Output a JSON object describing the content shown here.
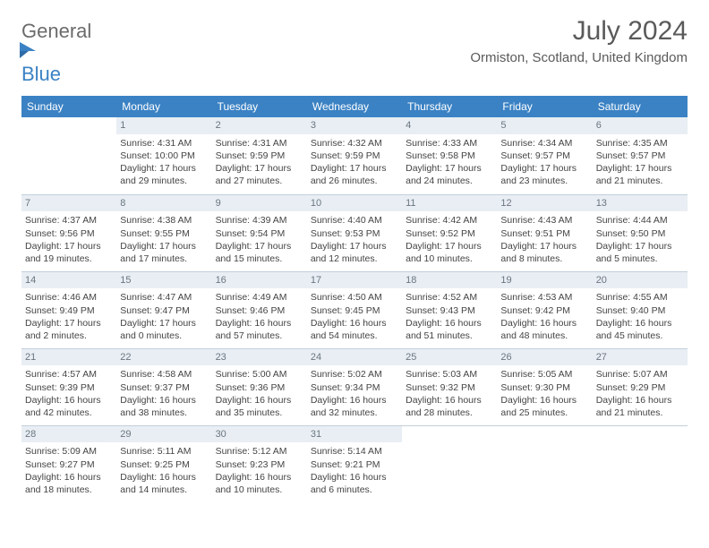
{
  "logo": {
    "line1": "General",
    "line2": "Blue"
  },
  "title": "July 2024",
  "subtitle": "Ormiston, Scotland, United Kingdom",
  "colors": {
    "header_bg": "#3b82c4",
    "daynum_bg": "#e8eef3",
    "text": "#444444",
    "title_color": "#5a5a5a",
    "row_border": "#c3cfda"
  },
  "day_labels": [
    "Sunday",
    "Monday",
    "Tuesday",
    "Wednesday",
    "Thursday",
    "Friday",
    "Saturday"
  ],
  "weeks": [
    [
      null,
      {
        "n": "1",
        "sr": "4:31 AM",
        "ss": "10:00 PM",
        "dl": "17 hours and 29 minutes."
      },
      {
        "n": "2",
        "sr": "4:31 AM",
        "ss": "9:59 PM",
        "dl": "17 hours and 27 minutes."
      },
      {
        "n": "3",
        "sr": "4:32 AM",
        "ss": "9:59 PM",
        "dl": "17 hours and 26 minutes."
      },
      {
        "n": "4",
        "sr": "4:33 AM",
        "ss": "9:58 PM",
        "dl": "17 hours and 24 minutes."
      },
      {
        "n": "5",
        "sr": "4:34 AM",
        "ss": "9:57 PM",
        "dl": "17 hours and 23 minutes."
      },
      {
        "n": "6",
        "sr": "4:35 AM",
        "ss": "9:57 PM",
        "dl": "17 hours and 21 minutes."
      }
    ],
    [
      {
        "n": "7",
        "sr": "4:37 AM",
        "ss": "9:56 PM",
        "dl": "17 hours and 19 minutes."
      },
      {
        "n": "8",
        "sr": "4:38 AM",
        "ss": "9:55 PM",
        "dl": "17 hours and 17 minutes."
      },
      {
        "n": "9",
        "sr": "4:39 AM",
        "ss": "9:54 PM",
        "dl": "17 hours and 15 minutes."
      },
      {
        "n": "10",
        "sr": "4:40 AM",
        "ss": "9:53 PM",
        "dl": "17 hours and 12 minutes."
      },
      {
        "n": "11",
        "sr": "4:42 AM",
        "ss": "9:52 PM",
        "dl": "17 hours and 10 minutes."
      },
      {
        "n": "12",
        "sr": "4:43 AM",
        "ss": "9:51 PM",
        "dl": "17 hours and 8 minutes."
      },
      {
        "n": "13",
        "sr": "4:44 AM",
        "ss": "9:50 PM",
        "dl": "17 hours and 5 minutes."
      }
    ],
    [
      {
        "n": "14",
        "sr": "4:46 AM",
        "ss": "9:49 PM",
        "dl": "17 hours and 2 minutes."
      },
      {
        "n": "15",
        "sr": "4:47 AM",
        "ss": "9:47 PM",
        "dl": "17 hours and 0 minutes."
      },
      {
        "n": "16",
        "sr": "4:49 AM",
        "ss": "9:46 PM",
        "dl": "16 hours and 57 minutes."
      },
      {
        "n": "17",
        "sr": "4:50 AM",
        "ss": "9:45 PM",
        "dl": "16 hours and 54 minutes."
      },
      {
        "n": "18",
        "sr": "4:52 AM",
        "ss": "9:43 PM",
        "dl": "16 hours and 51 minutes."
      },
      {
        "n": "19",
        "sr": "4:53 AM",
        "ss": "9:42 PM",
        "dl": "16 hours and 48 minutes."
      },
      {
        "n": "20",
        "sr": "4:55 AM",
        "ss": "9:40 PM",
        "dl": "16 hours and 45 minutes."
      }
    ],
    [
      {
        "n": "21",
        "sr": "4:57 AM",
        "ss": "9:39 PM",
        "dl": "16 hours and 42 minutes."
      },
      {
        "n": "22",
        "sr": "4:58 AM",
        "ss": "9:37 PM",
        "dl": "16 hours and 38 minutes."
      },
      {
        "n": "23",
        "sr": "5:00 AM",
        "ss": "9:36 PM",
        "dl": "16 hours and 35 minutes."
      },
      {
        "n": "24",
        "sr": "5:02 AM",
        "ss": "9:34 PM",
        "dl": "16 hours and 32 minutes."
      },
      {
        "n": "25",
        "sr": "5:03 AM",
        "ss": "9:32 PM",
        "dl": "16 hours and 28 minutes."
      },
      {
        "n": "26",
        "sr": "5:05 AM",
        "ss": "9:30 PM",
        "dl": "16 hours and 25 minutes."
      },
      {
        "n": "27",
        "sr": "5:07 AM",
        "ss": "9:29 PM",
        "dl": "16 hours and 21 minutes."
      }
    ],
    [
      {
        "n": "28",
        "sr": "5:09 AM",
        "ss": "9:27 PM",
        "dl": "16 hours and 18 minutes."
      },
      {
        "n": "29",
        "sr": "5:11 AM",
        "ss": "9:25 PM",
        "dl": "16 hours and 14 minutes."
      },
      {
        "n": "30",
        "sr": "5:12 AM",
        "ss": "9:23 PM",
        "dl": "16 hours and 10 minutes."
      },
      {
        "n": "31",
        "sr": "5:14 AM",
        "ss": "9:21 PM",
        "dl": "16 hours and 6 minutes."
      },
      null,
      null,
      null
    ]
  ],
  "labels": {
    "sunrise": "Sunrise: ",
    "sunset": "Sunset: ",
    "daylight": "Daylight: "
  }
}
